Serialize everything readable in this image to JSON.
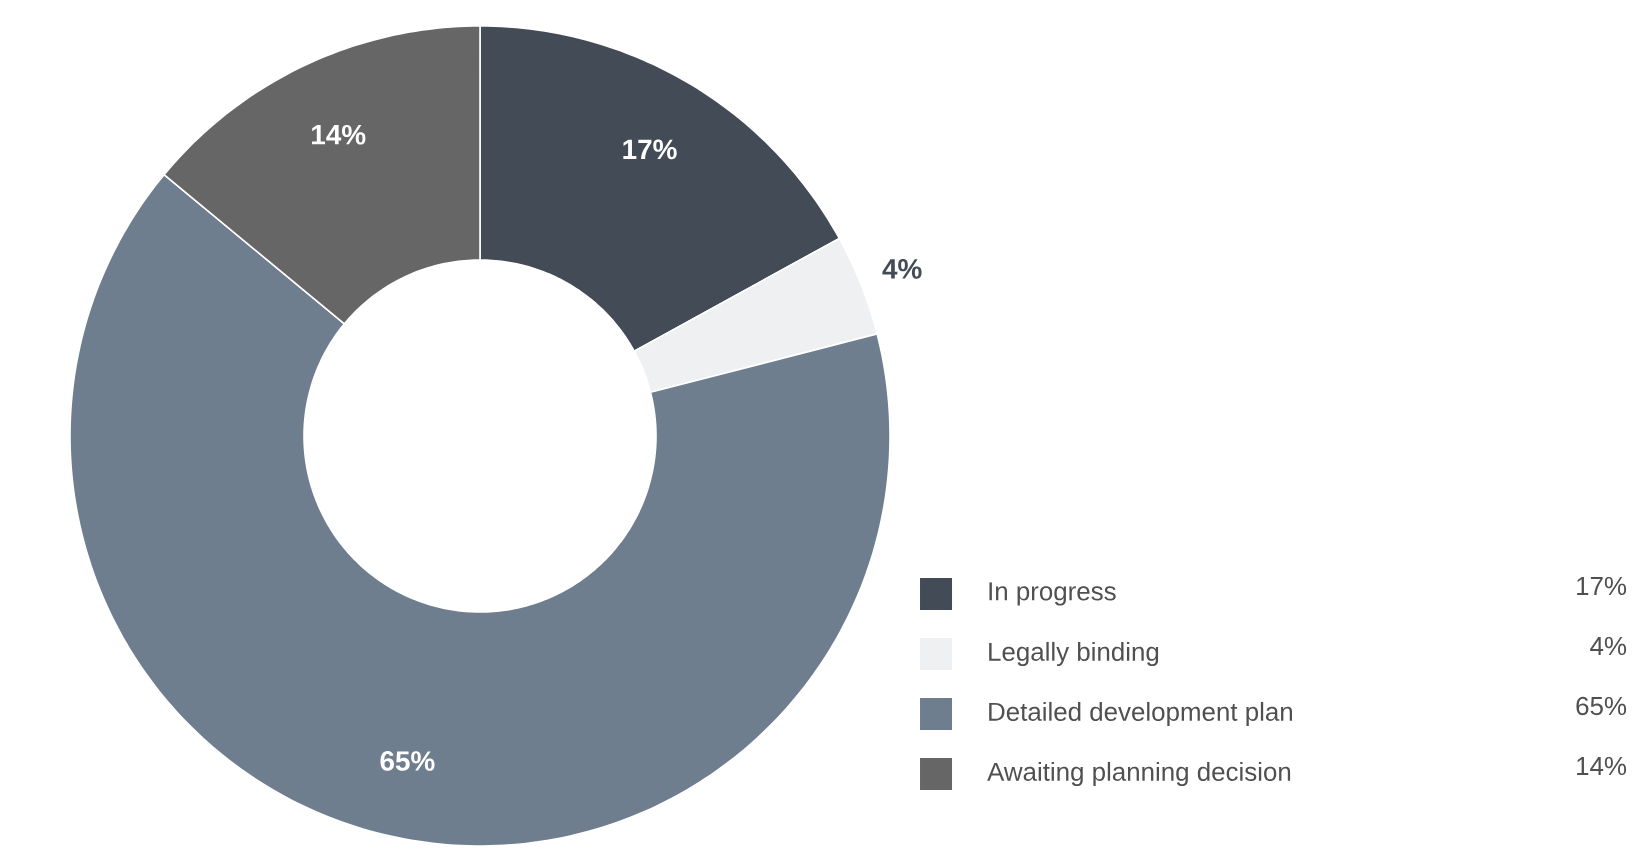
{
  "chart_data": {
    "type": "donut",
    "categories": [
      "In progress",
      "Legally binding",
      "Detailed development plan",
      "Awaiting planning decision"
    ],
    "values": [
      17,
      4,
      65,
      14
    ],
    "value_labels": [
      "17%",
      "4%",
      "65%",
      "14%"
    ],
    "colors": [
      "#434c56",
      "#eff0f1",
      "#6f7e8e",
      "#666666"
    ],
    "legend": "bottom right"
  }
}
